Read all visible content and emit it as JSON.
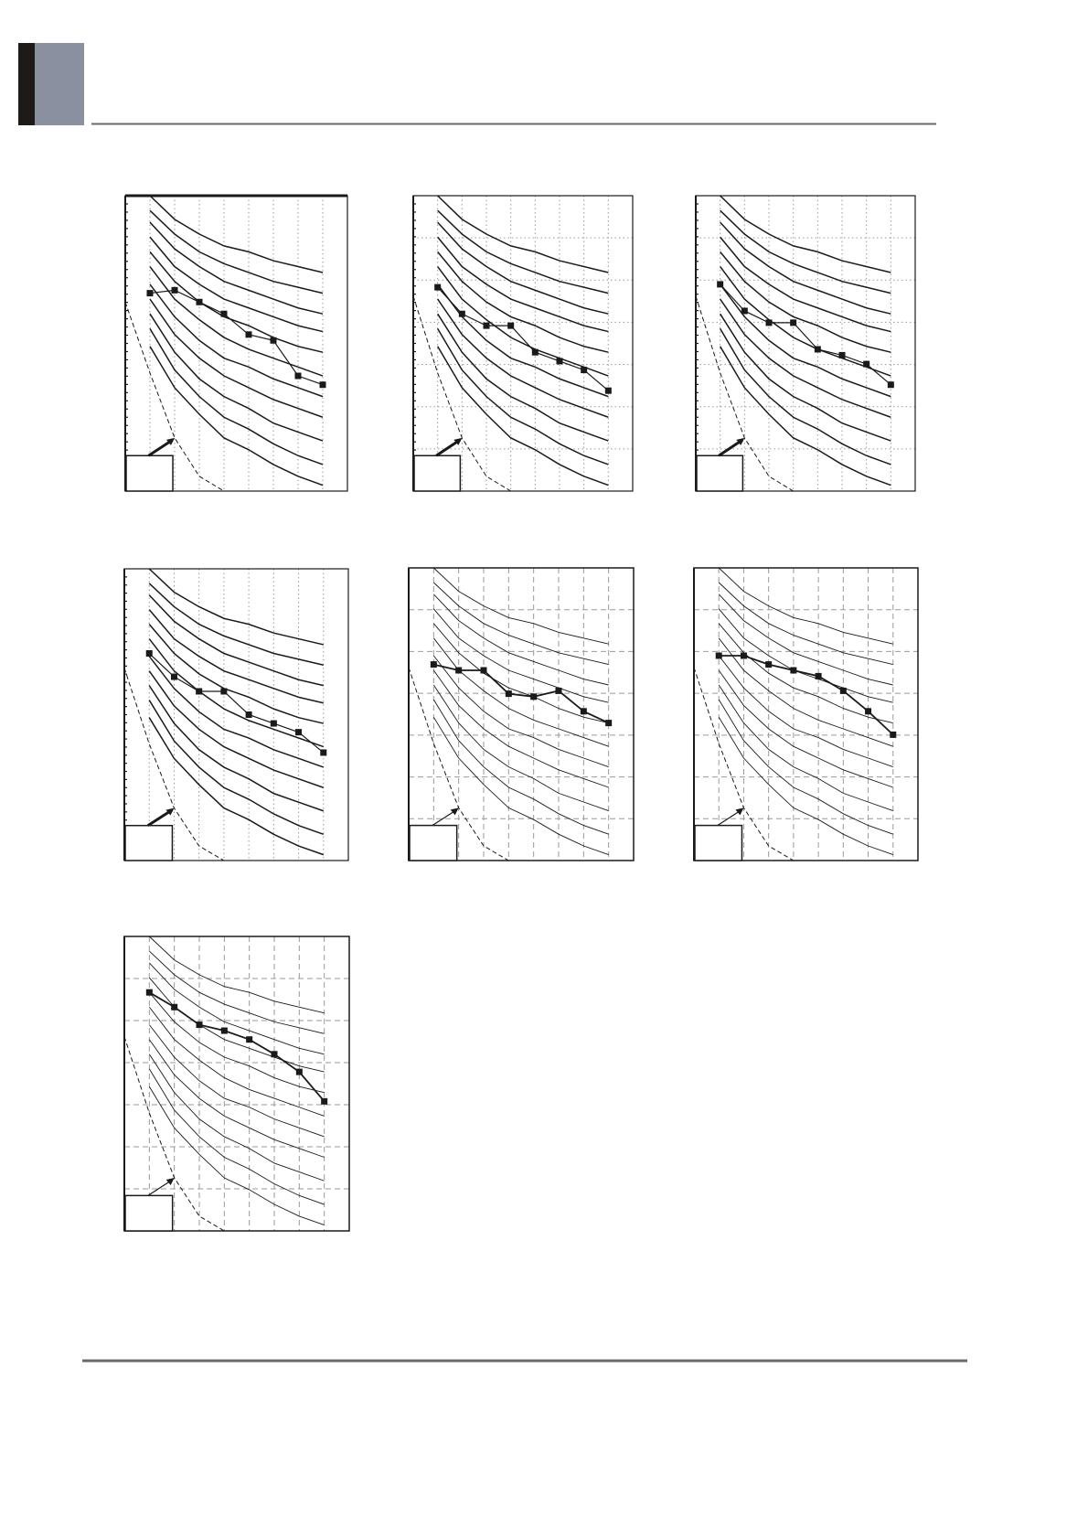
{
  "colors": {
    "header_bar": "#1e1a18",
    "header_block": "#8a90a0",
    "rule": "#6a6a6a",
    "ink": "#1a1a1a",
    "grid": "#9a9a9a"
  },
  "chart_data": {
    "shared_curves": {
      "x": [
        1,
        2,
        3,
        4,
        5,
        6,
        7,
        8
      ],
      "curves": [
        [
          100,
          92,
          87,
          83,
          81,
          78,
          76,
          74
        ],
        [
          95,
          87,
          81,
          77,
          74,
          71,
          69,
          67
        ],
        [
          91,
          82,
          76,
          71,
          68,
          65,
          62,
          60
        ],
        [
          86,
          76,
          70,
          65,
          62,
          59,
          56,
          54
        ],
        [
          81,
          71,
          64,
          59,
          56,
          52,
          49,
          47
        ],
        [
          76,
          65,
          58,
          52,
          48,
          45,
          42,
          39
        ],
        [
          70,
          59,
          51,
          45,
          42,
          38,
          35,
          32
        ],
        [
          65,
          53,
          45,
          39,
          35,
          31,
          28,
          25
        ],
        [
          60,
          47,
          38,
          32,
          28,
          23,
          20,
          17
        ],
        [
          55,
          41,
          32,
          25,
          21,
          16,
          12,
          9
        ],
        [
          49,
          35,
          26,
          18,
          14,
          9,
          5,
          2
        ]
      ]
    },
    "charts": [
      {
        "type": "line",
        "xlim": [
          0,
          9
        ],
        "ylim": [
          0,
          100
        ],
        "grid_style": "dotted",
        "horizontal_grid": false,
        "heavy": true,
        "dashed_curve": {
          "x": [
            0,
            1,
            2,
            3,
            4
          ],
          "y": [
            64,
            40,
            18,
            5,
            0
          ]
        },
        "series": {
          "x": [
            1,
            2,
            3,
            4,
            5,
            6,
            7,
            8
          ],
          "y": [
            67,
            68,
            64,
            60,
            53,
            51,
            39,
            36
          ]
        }
      },
      {
        "type": "line",
        "xlim": [
          0,
          9
        ],
        "ylim": [
          0,
          100
        ],
        "grid_style": "dotted",
        "horizontal_grid": true,
        "heavy": true,
        "dashed_curve": {
          "x": [
            0,
            1,
            2,
            3,
            4
          ],
          "y": [
            66,
            40,
            18,
            5,
            0
          ]
        },
        "series": {
          "x": [
            1,
            2,
            3,
            4,
            5,
            6,
            7,
            8
          ],
          "y": [
            69,
            60,
            56,
            56,
            47,
            44,
            41,
            34
          ]
        }
      },
      {
        "type": "line",
        "xlim": [
          0,
          9
        ],
        "ylim": [
          0,
          100
        ],
        "grid_style": "dotted",
        "horizontal_grid": true,
        "heavy": true,
        "dashed_curve": {
          "x": [
            0,
            1,
            2,
            3,
            4
          ],
          "y": [
            66,
            40,
            18,
            5,
            0
          ]
        },
        "series": {
          "x": [
            1,
            2,
            3,
            4,
            5,
            6,
            7,
            8
          ],
          "y": [
            70,
            61,
            57,
            57,
            48,
            46,
            43,
            36
          ]
        }
      },
      {
        "type": "line",
        "xlim": [
          0,
          9
        ],
        "ylim": [
          0,
          100
        ],
        "grid_style": "dotted",
        "horizontal_grid": false,
        "heavy": true,
        "dashed_curve": {
          "x": [
            0,
            1,
            2,
            3,
            4
          ],
          "y": [
            66,
            40,
            18,
            5,
            0
          ]
        },
        "series": {
          "x": [
            1,
            2,
            3,
            4,
            5,
            6,
            7,
            8
          ],
          "y": [
            71,
            63,
            58,
            58,
            50,
            47,
            44,
            37
          ]
        }
      },
      {
        "type": "line",
        "xlim": [
          0,
          9
        ],
        "ylim": [
          0,
          100
        ],
        "grid_style": "dashed",
        "horizontal_grid": true,
        "heavy": false,
        "dashed_curve": {
          "x": [
            0,
            1,
            2,
            3,
            4
          ],
          "y": [
            66,
            40,
            18,
            5,
            0
          ]
        },
        "series": {
          "x": [
            1,
            2,
            3,
            4,
            5,
            6,
            7,
            8
          ],
          "y": [
            67,
            65,
            65,
            57,
            56,
            58,
            51,
            47
          ]
        }
      },
      {
        "type": "line",
        "xlim": [
          0,
          9
        ],
        "ylim": [
          0,
          100
        ],
        "grid_style": "dashed",
        "horizontal_grid": true,
        "heavy": false,
        "dashed_curve": {
          "x": [
            0,
            1,
            2,
            3,
            4
          ],
          "y": [
            66,
            40,
            18,
            5,
            0
          ]
        },
        "series": {
          "x": [
            1,
            2,
            3,
            4,
            5,
            6,
            7,
            8
          ],
          "y": [
            70,
            70,
            67,
            65,
            63,
            58,
            51,
            43
          ]
        }
      },
      {
        "type": "line",
        "xlim": [
          0,
          9
        ],
        "ylim": [
          0,
          100
        ],
        "grid_style": "dashed",
        "horizontal_grid": true,
        "heavy": false,
        "dashed_curve": {
          "x": [
            0,
            1,
            2,
            3,
            4
          ],
          "y": [
            66,
            40,
            18,
            5,
            0
          ]
        },
        "series": {
          "x": [
            1,
            2,
            3,
            4,
            5,
            6,
            7,
            8
          ],
          "y": [
            81,
            76,
            70,
            68,
            65,
            60,
            54,
            44
          ]
        }
      }
    ]
  }
}
